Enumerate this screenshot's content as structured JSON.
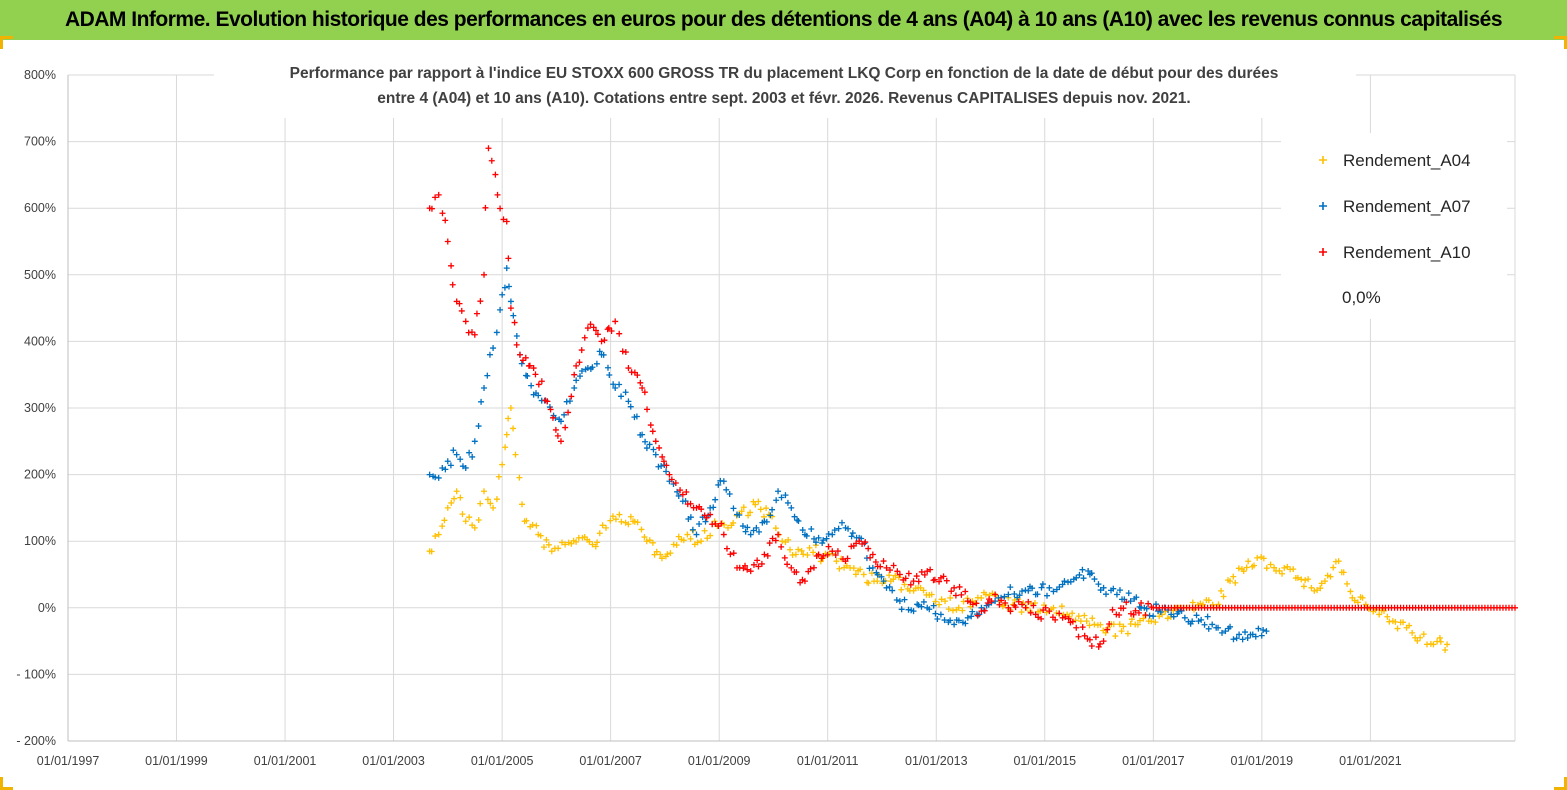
{
  "banner": {
    "title": "ADAM Informe. Evolution historique des performances en euros pour des détentions de 4 ans (A04) à 10 ans (A10) avec les revenus connus capitalisés"
  },
  "colors": {
    "banner_bg": "#92d050",
    "A04": "#ffc000",
    "A07": "#0070c0",
    "A10": "#ff0000",
    "zero_line": "#000000",
    "grid": "#d9d9d9"
  },
  "chart_data": {
    "type": "scatter",
    "title_lines": [
      "Performance par rapport à l'indice EU STOXX 600 GROSS TR  du placement LKQ Corp en fonction de la date de début pour des durées",
      "entre 4 (A04) et 10 ans (A10). Cotations entre sept. 2003 et févr. 2026. Revenus CAPITALISES depuis nov. 2021."
    ],
    "xlabel": "",
    "ylabel": "",
    "x_ticks": [
      "01/01/1997",
      "01/01/1999",
      "01/01/2001",
      "01/01/2003",
      "01/01/2005",
      "01/01/2007",
      "01/01/2009",
      "01/01/2011",
      "01/01/2013",
      "01/01/2015",
      "01/01/2017",
      "01/01/2019",
      "01/01/2021"
    ],
    "xlim": [
      "1997-01-01",
      "2023-09-01"
    ],
    "y_ticks": [
      "800%",
      "700%",
      "600%",
      "500%",
      "400%",
      "300%",
      "200%",
      "100%",
      "0%",
      "- 100%",
      "- 200%"
    ],
    "ylim": [
      -200,
      800
    ],
    "y_unit": "%",
    "grid": true,
    "legend_position": "top-right",
    "marker": "+",
    "series": [
      {
        "name": "Rendement_A04",
        "key": "A04",
        "points": [
          [
            "2003-09-01",
            85
          ],
          [
            "2003-11-01",
            110
          ],
          [
            "2004-01-01",
            150
          ],
          [
            "2004-03-01",
            175
          ],
          [
            "2004-05-01",
            130
          ],
          [
            "2004-07-01",
            120
          ],
          [
            "2004-09-01",
            175
          ],
          [
            "2004-11-01",
            150
          ],
          [
            "2005-01-01",
            215
          ],
          [
            "2005-02-01",
            260
          ],
          [
            "2005-03-01",
            300
          ],
          [
            "2005-04-01",
            230
          ],
          [
            "2005-06-01",
            130
          ],
          [
            "2005-09-01",
            110
          ],
          [
            "2005-12-01",
            85
          ],
          [
            "2006-03-01",
            95
          ],
          [
            "2006-06-01",
            105
          ],
          [
            "2006-09-01",
            95
          ],
          [
            "2006-12-01",
            120
          ],
          [
            "2007-03-01",
            140
          ],
          [
            "2007-06-01",
            130
          ],
          [
            "2007-09-01",
            100
          ],
          [
            "2007-12-01",
            80
          ],
          [
            "2008-03-01",
            95
          ],
          [
            "2008-06-01",
            110
          ],
          [
            "2008-09-01",
            100
          ],
          [
            "2008-12-01",
            130
          ],
          [
            "2009-03-01",
            120
          ],
          [
            "2009-06-01",
            145
          ],
          [
            "2009-09-01",
            155
          ],
          [
            "2009-12-01",
            140
          ],
          [
            "2010-03-01",
            100
          ],
          [
            "2010-06-01",
            80
          ],
          [
            "2010-09-01",
            90
          ],
          [
            "2010-12-01",
            75
          ],
          [
            "2011-03-01",
            70
          ],
          [
            "2011-06-01",
            60
          ],
          [
            "2011-09-01",
            50
          ],
          [
            "2011-12-01",
            40
          ],
          [
            "2012-03-01",
            40
          ],
          [
            "2012-06-01",
            35
          ],
          [
            "2012-09-01",
            30
          ],
          [
            "2012-12-01",
            20
          ],
          [
            "2013-03-01",
            10
          ],
          [
            "2013-06-01",
            0
          ],
          [
            "2013-09-01",
            10
          ],
          [
            "2013-12-01",
            20
          ],
          [
            "2014-03-01",
            10
          ],
          [
            "2014-06-01",
            5
          ],
          [
            "2014-09-01",
            0
          ],
          [
            "2014-12-01",
            -5
          ],
          [
            "2015-03-01",
            0
          ],
          [
            "2015-06-01",
            -10
          ],
          [
            "2015-09-01",
            -20
          ],
          [
            "2015-12-01",
            -25
          ],
          [
            "2016-03-01",
            -30
          ],
          [
            "2016-06-01",
            -35
          ],
          [
            "2016-09-01",
            -25
          ],
          [
            "2016-12-01",
            -20
          ],
          [
            "2017-03-01",
            -10
          ],
          [
            "2017-06-01",
            0
          ],
          [
            "2017-09-01",
            0
          ],
          [
            "2017-12-01",
            5
          ],
          [
            "2018-03-01",
            0
          ],
          [
            "2018-06-01",
            40
          ],
          [
            "2018-09-01",
            55
          ],
          [
            "2018-12-01",
            75
          ],
          [
            "2019-03-01",
            65
          ],
          [
            "2019-06-01",
            60
          ],
          [
            "2019-09-01",
            45
          ],
          [
            "2019-12-01",
            30
          ],
          [
            "2020-03-01",
            40
          ],
          [
            "2020-06-01",
            70
          ],
          [
            "2020-09-01",
            15
          ],
          [
            "2020-12-01",
            5
          ],
          [
            "2021-03-01",
            -10
          ],
          [
            "2021-06-01",
            -20
          ],
          [
            "2021-09-01",
            -30
          ],
          [
            "2021-12-01",
            -45
          ],
          [
            "2022-03-01",
            -55
          ],
          [
            "2022-06-01",
            -55
          ]
        ]
      },
      {
        "name": "Rendement_A07",
        "key": "A07",
        "points": [
          [
            "2003-09-01",
            200
          ],
          [
            "2003-11-01",
            195
          ],
          [
            "2004-01-01",
            220
          ],
          [
            "2004-03-01",
            230
          ],
          [
            "2004-05-01",
            210
          ],
          [
            "2004-07-01",
            250
          ],
          [
            "2004-09-01",
            330
          ],
          [
            "2004-11-01",
            390
          ],
          [
            "2005-01-01",
            470
          ],
          [
            "2005-02-01",
            510
          ],
          [
            "2005-03-01",
            460
          ],
          [
            "2005-05-01",
            380
          ],
          [
            "2005-08-01",
            320
          ],
          [
            "2005-11-01",
            310
          ],
          [
            "2006-02-01",
            280
          ],
          [
            "2006-05-01",
            330
          ],
          [
            "2006-08-01",
            360
          ],
          [
            "2006-11-01",
            380
          ],
          [
            "2007-02-01",
            330
          ],
          [
            "2007-05-01",
            310
          ],
          [
            "2007-08-01",
            260
          ],
          [
            "2007-11-01",
            230
          ],
          [
            "2008-02-01",
            190
          ],
          [
            "2008-05-01",
            160
          ],
          [
            "2008-08-01",
            110
          ],
          [
            "2008-11-01",
            150
          ],
          [
            "2009-02-01",
            190
          ],
          [
            "2009-05-01",
            140
          ],
          [
            "2009-08-01",
            110
          ],
          [
            "2009-11-01",
            130
          ],
          [
            "2010-02-01",
            175
          ],
          [
            "2010-05-01",
            150
          ],
          [
            "2010-08-01",
            110
          ],
          [
            "2010-11-01",
            105
          ],
          [
            "2011-02-01",
            110
          ],
          [
            "2011-05-01",
            120
          ],
          [
            "2011-08-01",
            105
          ],
          [
            "2011-11-01",
            60
          ],
          [
            "2012-02-01",
            30
          ],
          [
            "2012-05-01",
            10
          ],
          [
            "2012-08-01",
            -5
          ],
          [
            "2012-11-01",
            0
          ],
          [
            "2013-02-01",
            -10
          ],
          [
            "2013-05-01",
            -25
          ],
          [
            "2013-08-01",
            -15
          ],
          [
            "2013-11-01",
            0
          ],
          [
            "2014-02-01",
            10
          ],
          [
            "2014-05-01",
            20
          ],
          [
            "2014-08-01",
            25
          ],
          [
            "2014-11-01",
            20
          ],
          [
            "2015-02-01",
            30
          ],
          [
            "2015-05-01",
            35
          ],
          [
            "2015-08-01",
            45
          ],
          [
            "2015-11-01",
            50
          ],
          [
            "2016-02-01",
            30
          ],
          [
            "2016-05-01",
            20
          ],
          [
            "2016-08-01",
            10
          ],
          [
            "2016-11-01",
            0
          ],
          [
            "2017-02-01",
            -5
          ],
          [
            "2017-05-01",
            -10
          ],
          [
            "2017-08-01",
            -15
          ],
          [
            "2017-11-01",
            -20
          ],
          [
            "2018-02-01",
            -25
          ],
          [
            "2018-05-01",
            -35
          ],
          [
            "2018-08-01",
            -40
          ],
          [
            "2018-11-01",
            -40
          ],
          [
            "2019-02-01",
            -35
          ]
        ]
      },
      {
        "name": "Rendement_A10",
        "key": "A10",
        "points": [
          [
            "2003-09-01",
            600
          ],
          [
            "2003-11-01",
            620
          ],
          [
            "2004-01-01",
            550
          ],
          [
            "2004-03-01",
            460
          ],
          [
            "2004-05-01",
            430
          ],
          [
            "2004-07-01",
            410
          ],
          [
            "2004-09-01",
            500
          ],
          [
            "2004-10-01",
            690
          ],
          [
            "2004-12-01",
            620
          ],
          [
            "2005-02-01",
            580
          ],
          [
            "2005-03-01",
            450
          ],
          [
            "2005-05-01",
            380
          ],
          [
            "2005-08-01",
            360
          ],
          [
            "2005-11-01",
            310
          ],
          [
            "2006-02-01",
            250
          ],
          [
            "2006-05-01",
            350
          ],
          [
            "2006-08-01",
            420
          ],
          [
            "2006-11-01",
            400
          ],
          [
            "2007-02-01",
            430
          ],
          [
            "2007-05-01",
            360
          ],
          [
            "2007-08-01",
            330
          ],
          [
            "2007-11-01",
            250
          ],
          [
            "2008-02-01",
            200
          ],
          [
            "2008-05-01",
            170
          ],
          [
            "2008-08-01",
            150
          ],
          [
            "2008-11-01",
            140
          ],
          [
            "2009-02-01",
            110
          ],
          [
            "2009-05-01",
            60
          ],
          [
            "2009-08-01",
            55
          ],
          [
            "2009-11-01",
            80
          ],
          [
            "2010-02-01",
            110
          ],
          [
            "2010-05-01",
            60
          ],
          [
            "2010-08-01",
            40
          ],
          [
            "2010-11-01",
            80
          ],
          [
            "2011-02-01",
            85
          ],
          [
            "2011-05-01",
            70
          ],
          [
            "2011-08-01",
            100
          ],
          [
            "2011-11-01",
            80
          ],
          [
            "2012-02-01",
            60
          ],
          [
            "2012-05-01",
            50
          ],
          [
            "2012-08-01",
            40
          ],
          [
            "2012-11-01",
            55
          ],
          [
            "2013-02-01",
            45
          ],
          [
            "2013-05-01",
            30
          ],
          [
            "2013-08-01",
            10
          ],
          [
            "2013-11-01",
            -5
          ],
          [
            "2014-02-01",
            20
          ],
          [
            "2014-05-01",
            0
          ],
          [
            "2014-08-01",
            5
          ],
          [
            "2014-11-01",
            -10
          ],
          [
            "2015-02-01",
            -5
          ],
          [
            "2015-05-01",
            -15
          ],
          [
            "2015-08-01",
            -30
          ],
          [
            "2015-11-01",
            -48
          ],
          [
            "2016-02-01",
            -50
          ],
          [
            "2016-04-01",
            -3
          ],
          [
            "2017-01-01",
            0
          ],
          [
            "2018-01-01",
            0
          ],
          [
            "2019-01-01",
            0
          ],
          [
            "2020-01-01",
            0
          ],
          [
            "2021-01-01",
            0
          ],
          [
            "2022-01-01",
            0
          ],
          [
            "2023-01-01",
            0
          ],
          [
            "2023-09-01",
            0
          ]
        ]
      },
      {
        "name": "0,0%",
        "key": "zero",
        "type": "line",
        "points": [
          [
            "2003-09-01",
            0
          ],
          [
            "2023-09-01",
            0
          ]
        ]
      }
    ]
  }
}
